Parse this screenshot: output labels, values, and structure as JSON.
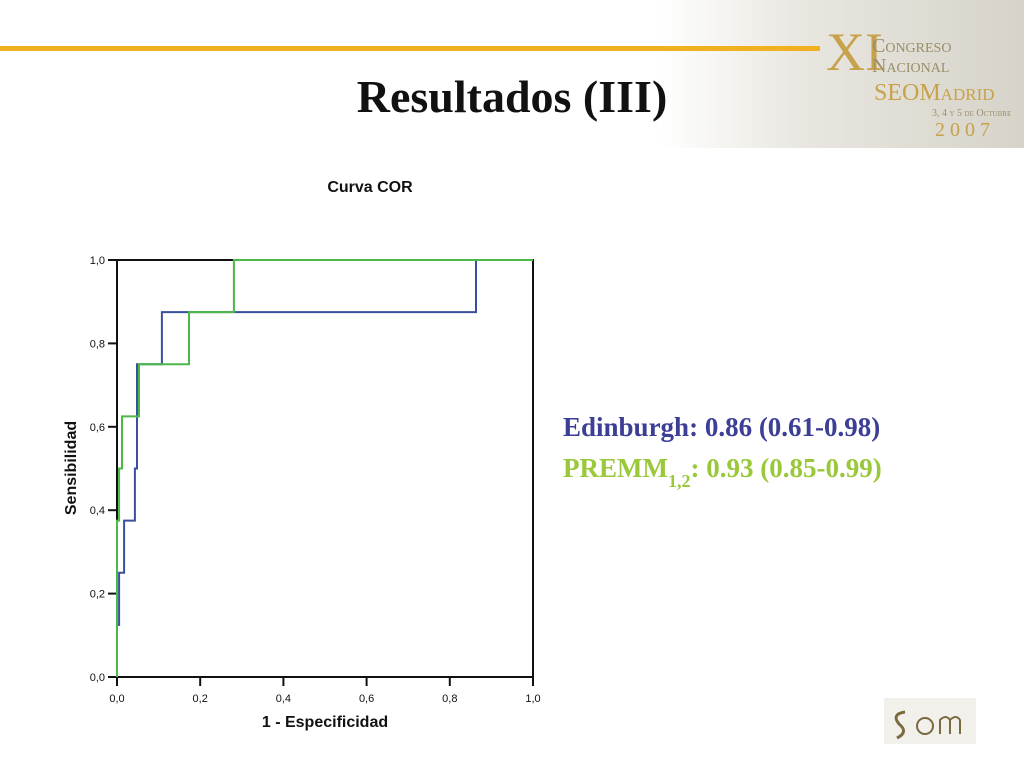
{
  "slide_title": "Resultados (III)",
  "logo": {
    "numeral": "XI",
    "line1": "Congreso",
    "line2": "Nacional",
    "line3": "SEOMadrid",
    "dates": "3, 4 y 5 de Octubre",
    "year": "2 0 0 7"
  },
  "annotations": [
    {
      "text": "Edinburgh: 0.86 (0.61-0.98)",
      "color": "#3d3f96"
    },
    {
      "text": "PREMM",
      "sub": "1,2",
      "rest": ": 0.93 (0.85-0.99)",
      "color": "#99c93a"
    }
  ],
  "chart_data": {
    "type": "line",
    "title": "Curva COR",
    "xlabel": "1 - Especificidad",
    "ylabel": "Sensibilidad",
    "xlim": [
      0,
      1
    ],
    "ylim": [
      0,
      1
    ],
    "xticks": [
      {
        "value": 0,
        "label": "0,0"
      },
      {
        "value": 0.2,
        "label": "0,2"
      },
      {
        "value": 0.4,
        "label": "0,4"
      },
      {
        "value": 0.6,
        "label": "0,6"
      },
      {
        "value": 0.8,
        "label": "0,8"
      },
      {
        "value": 1,
        "label": "1,0"
      }
    ],
    "yticks": [
      {
        "value": 0,
        "label": "0,0"
      },
      {
        "value": 0.2,
        "label": "0,2"
      },
      {
        "value": 0.4,
        "label": "0,4"
      },
      {
        "value": 0.6,
        "label": "0,6"
      },
      {
        "value": 0.8,
        "label": "0,8"
      },
      {
        "value": 1,
        "label": "1,0"
      }
    ],
    "series": [
      {
        "color": "#3a4f9e",
        "x": [
          0,
          0,
          0.005,
          0.005,
          0.017,
          0.017,
          0.043,
          0.043,
          0.048,
          0.048,
          0.108,
          0.108,
          0.863,
          0.863,
          1.0
        ],
        "values": [
          0,
          0.125,
          0.125,
          0.25,
          0.25,
          0.375,
          0.375,
          0.5,
          0.5,
          0.75,
          0.75,
          0.875,
          0.875,
          1.0,
          1.0
        ]
      },
      {
        "color": "#4cb848",
        "x": [
          0,
          0,
          0.005,
          0.005,
          0.012,
          0.012,
          0.053,
          0.053,
          0.173,
          0.173,
          0.281,
          0.281,
          1.0
        ],
        "values": [
          0,
          0.375,
          0.375,
          0.5,
          0.5,
          0.625,
          0.625,
          0.75,
          0.75,
          0.875,
          0.875,
          1.0,
          1.0
        ]
      }
    ]
  }
}
